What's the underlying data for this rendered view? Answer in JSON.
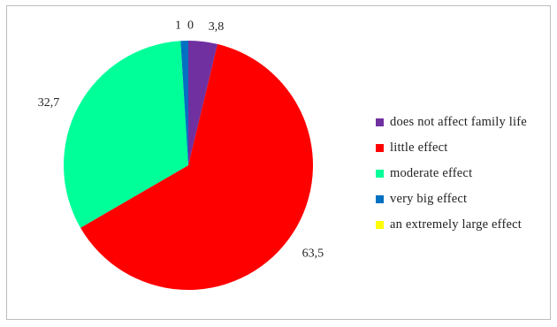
{
  "chart_data": {
    "type": "pie",
    "title": "",
    "legend_position": "right",
    "series": [
      {
        "values": [
          3.8,
          63.5,
          32.7,
          1.0,
          0.0
        ],
        "data_labels": [
          "3,8",
          "63,5",
          "32,7",
          "1",
          "0"
        ]
      }
    ],
    "categories": [
      "does not affect family life",
      "little effect",
      "moderate effect",
      "very big effect",
      "an extremely large effect"
    ],
    "colors": [
      "#7030a0",
      "#ff0000",
      "#00ff99",
      "#0070c0",
      "#ffff00"
    ]
  }
}
